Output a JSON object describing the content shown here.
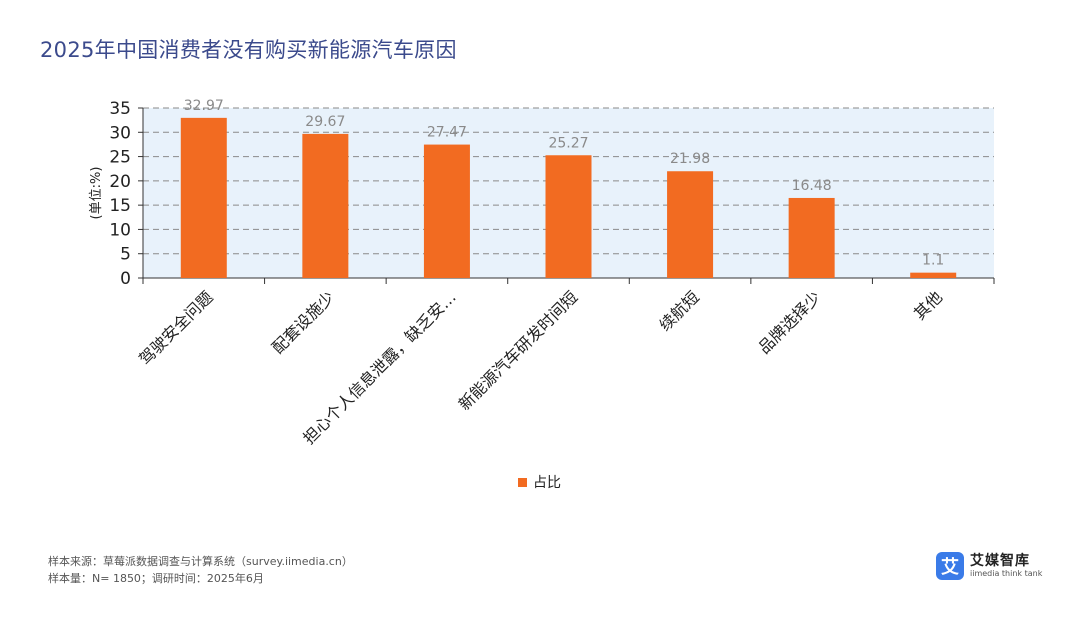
{
  "title": "2025年中国消费者没有购买新能源汽车原因",
  "chart_data": {
    "type": "bar",
    "categories": [
      "驾驶安全问题",
      "配套设施少",
      "担心个人信息泄露，缺乏安…",
      "新能源汽车研发时间短",
      "续航短",
      "品牌选择少",
      "其他"
    ],
    "values": [
      32.97,
      29.67,
      27.47,
      25.27,
      21.98,
      16.48,
      1.1
    ],
    "data_labels": [
      "32.97",
      "29.67",
      "27.47",
      "25.27",
      "21.98",
      "16.48",
      "1.1"
    ],
    "series_name": "占比",
    "ylabel": "(单位:%)",
    "ylim": [
      0,
      35
    ],
    "yticks": [
      0,
      5,
      10,
      15,
      20,
      25,
      30,
      35
    ],
    "grid": true,
    "legend_position": "bottom",
    "colors": {
      "bar": "#f26b21",
      "plot_bg": "#e8f2fb",
      "grid": "#8a8a8a",
      "label": "#8a8a8a"
    }
  },
  "footer": {
    "source": "样本来源：草莓派数据调查与计算系统（survey.iimedia.cn）",
    "sample": "样本量：N= 1850；调研时间：2025年6月"
  },
  "logo": {
    "mark": "艾",
    "name": "艾媒智库",
    "sub": "iimedia think tank"
  }
}
